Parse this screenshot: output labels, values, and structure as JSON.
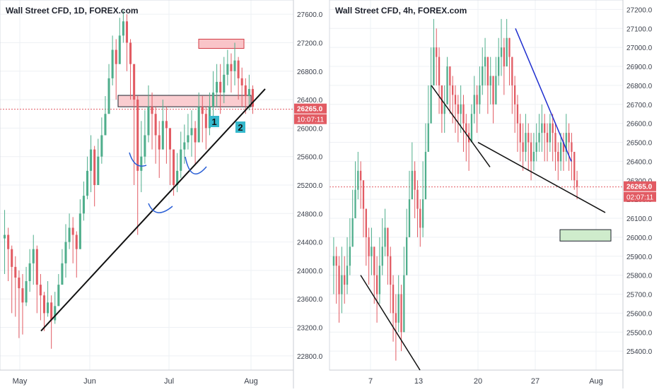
{
  "colors": {
    "up": "#4fae8c",
    "down": "#e25b63",
    "grid": "#eef0f4",
    "axis_text": "#3a3f4a",
    "price_line": "#e25b63",
    "trendline": "#111111",
    "blue_trendline": "#1f2fcf",
    "curve": "#2a5fd6",
    "zone_fill": "#f9c4c8",
    "zone_stroke": "#d23b45",
    "target_fill": "#cfeccc",
    "label_box": "#35b8cc"
  },
  "chart_data": [
    {
      "type": "candlestick",
      "title": "Wall Street CFD, 1D, FOREX.com",
      "x_tick_labels": [
        "May",
        "Jun",
        "Jul",
        "Aug"
      ],
      "y_tick_labels": [
        "27600.0",
        "27200.0",
        "26800.0",
        "26400.0",
        "26000.0",
        "25600.0",
        "25200.0",
        "24800.0",
        "24400.0",
        "24000.0",
        "23600.0",
        "23200.0",
        "22800.0"
      ],
      "ylim": [
        22600,
        27800
      ],
      "grid": true,
      "last_price": "26265.0",
      "countdown": "10:07:11",
      "labels": [
        "1",
        "2"
      ],
      "closes": [
        24500,
        24300,
        24050,
        23900,
        23750,
        23550,
        23850,
        24100,
        24300,
        23800,
        23650,
        23400,
        23550,
        23300,
        23500,
        23800,
        24100,
        24400,
        24600,
        24500,
        24300,
        24800,
        25050,
        25400,
        25700,
        25200,
        25600,
        25900,
        26200,
        26700,
        27100,
        26900,
        27300,
        27500,
        27200,
        26900,
        26400,
        25400,
        25600,
        25900,
        26300,
        26200,
        25900,
        25700,
        26100,
        26000,
        25700,
        25200,
        25400,
        25700,
        25800,
        25900,
        26000,
        25800,
        26300,
        26200,
        26000,
        26300,
        26500,
        26650,
        26500,
        26750,
        26900,
        26800,
        26950,
        26700,
        26600,
        26450,
        26550,
        26300
      ],
      "lows": [
        23950,
        23850,
        23400,
        23350,
        23050,
        23100,
        23500,
        23700,
        23800,
        23400,
        23300,
        23150,
        23350,
        22900,
        23250,
        23500,
        23800,
        23900,
        24300,
        24100,
        23900,
        24400,
        24700,
        25000,
        25100,
        24900,
        25250,
        25500,
        25900,
        26300,
        26600,
        26400,
        26900,
        27200,
        26800,
        26400,
        25200,
        24500,
        25100,
        25500,
        25800,
        25700,
        25500,
        25300,
        25700,
        25500,
        25200,
        25050,
        25100,
        25300,
        25500,
        25700,
        25600,
        25500,
        25800,
        25800,
        25700,
        25900,
        26150,
        26300,
        26200,
        26350,
        26600,
        26500,
        26600,
        26400,
        26300,
        26200,
        26250,
        26200
      ],
      "highs": [
        24850,
        24600,
        24350,
        24200,
        24000,
        23950,
        24050,
        24300,
        24500,
        24350,
        23950,
        23700,
        23850,
        23650,
        23700,
        23950,
        24300,
        24650,
        24800,
        24750,
        24550,
        25000,
        25250,
        25600,
        25900,
        25750,
        25850,
        26150,
        26450,
        26900,
        27300,
        27250,
        27550,
        27650,
        27600,
        27250,
        26900,
        26450,
        26100,
        26250,
        26600,
        26500,
        26300,
        26100,
        26400,
        26300,
        26000,
        25700,
        25650,
        25950,
        26050,
        26200,
        26250,
        26100,
        26500,
        26450,
        26300,
        26500,
        26800,
        26900,
        26900,
        27000,
        27100,
        27050,
        27200,
        27000,
        26850,
        26700,
        26750,
        26600
      ]
    },
    {
      "type": "candlestick",
      "title": "Wall Street CFD, 4h, FOREX.com",
      "x_tick_labels": [
        "7",
        "13",
        "20",
        "27",
        "Aug"
      ],
      "y_tick_labels": [
        "27200.0",
        "27100.0",
        "27000.0",
        "26900.0",
        "26800.0",
        "26700.0",
        "26600.0",
        "26500.0",
        "26400.0",
        "26300.0",
        "26200.0",
        "26100.0",
        "26000.0",
        "25900.0",
        "25800.0",
        "25700.0",
        "25600.0",
        "25500.0",
        "25400.0"
      ],
      "ylim": [
        25300,
        27250
      ],
      "grid": true,
      "last_price": "26265.0",
      "countdown": "02:07:11",
      "closes": [
        25900,
        25850,
        25700,
        25800,
        25750,
        25850,
        25950,
        26100,
        26250,
        26350,
        26300,
        26150,
        26000,
        25900,
        25950,
        25800,
        25700,
        25850,
        25950,
        26050,
        25900,
        25750,
        25600,
        25550,
        25700,
        25500,
        25800,
        26000,
        26200,
        26350,
        26250,
        26150,
        26050,
        26200,
        26450,
        26600,
        26800,
        27000,
        26950,
        26800,
        26650,
        26700,
        26900,
        26800,
        26750,
        26700,
        26650,
        26700,
        26600,
        26550,
        26500,
        26650,
        26750,
        26700,
        26800,
        26900,
        26950,
        26800,
        26850,
        26700,
        26850,
        26950,
        27000,
        26900,
        27050,
        26950,
        26800,
        26700,
        26600,
        26500,
        26450,
        26550,
        26500,
        26400,
        26450,
        26500,
        26550,
        26600,
        26550,
        26500,
        26600,
        26550,
        26450,
        26400,
        26500,
        26450,
        26550,
        26500,
        26450,
        26300,
        26265
      ],
      "lows": [
        25700,
        25650,
        25550,
        25600,
        25650,
        25700,
        25800,
        25950,
        26100,
        26200,
        26150,
        26000,
        25850,
        25750,
        25800,
        25650,
        25550,
        25650,
        25800,
        25900,
        25750,
        25600,
        25450,
        25350,
        25500,
        25400,
        25600,
        25850,
        26050,
        26200,
        26100,
        26000,
        25950,
        26000,
        26300,
        26450,
        26650,
        26850,
        26800,
        26650,
        26550,
        26550,
        26700,
        26650,
        26600,
        26550,
        26500,
        26550,
        26450,
        26400,
        26350,
        26500,
        26600,
        26550,
        26650,
        26750,
        26800,
        26650,
        26700,
        26600,
        26700,
        26800,
        26850,
        26750,
        26900,
        26800,
        26650,
        26550,
        26450,
        26400,
        26350,
        26400,
        26350,
        26300,
        26350,
        26400,
        26450,
        26450,
        26400,
        26400,
        26450,
        26400,
        26350,
        26300,
        26350,
        26350,
        26400,
        26350,
        26300,
        26250,
        26200
      ],
      "highs": [
        26000,
        25950,
        25900,
        25950,
        25900,
        26000,
        26100,
        26250,
        26400,
        26450,
        26400,
        26300,
        26150,
        26050,
        26050,
        25950,
        25900,
        26000,
        26100,
        26150,
        26050,
        25950,
        25800,
        25700,
        25800,
        25750,
        25950,
        26150,
        26350,
        26500,
        26400,
        26300,
        26200,
        26400,
        26600,
        26800,
        27000,
        27150,
        27100,
        27000,
        26800,
        26800,
        26950,
        26900,
        26850,
        26800,
        26750,
        26800,
        26750,
        26650,
        26600,
        26700,
        26850,
        26800,
        26900,
        27000,
        27050,
        26950,
        26950,
        26850,
        26950,
        27050,
        27150,
        27050,
        27150,
        27050,
        26950,
        26850,
        26750,
        26650,
        26600,
        26650,
        26600,
        26550,
        26550,
        26600,
        26650,
        26700,
        26650,
        26600,
        26650,
        26650,
        26600,
        26500,
        26550,
        26550,
        26650,
        26600,
        26550,
        26450,
        26350
      ]
    }
  ]
}
